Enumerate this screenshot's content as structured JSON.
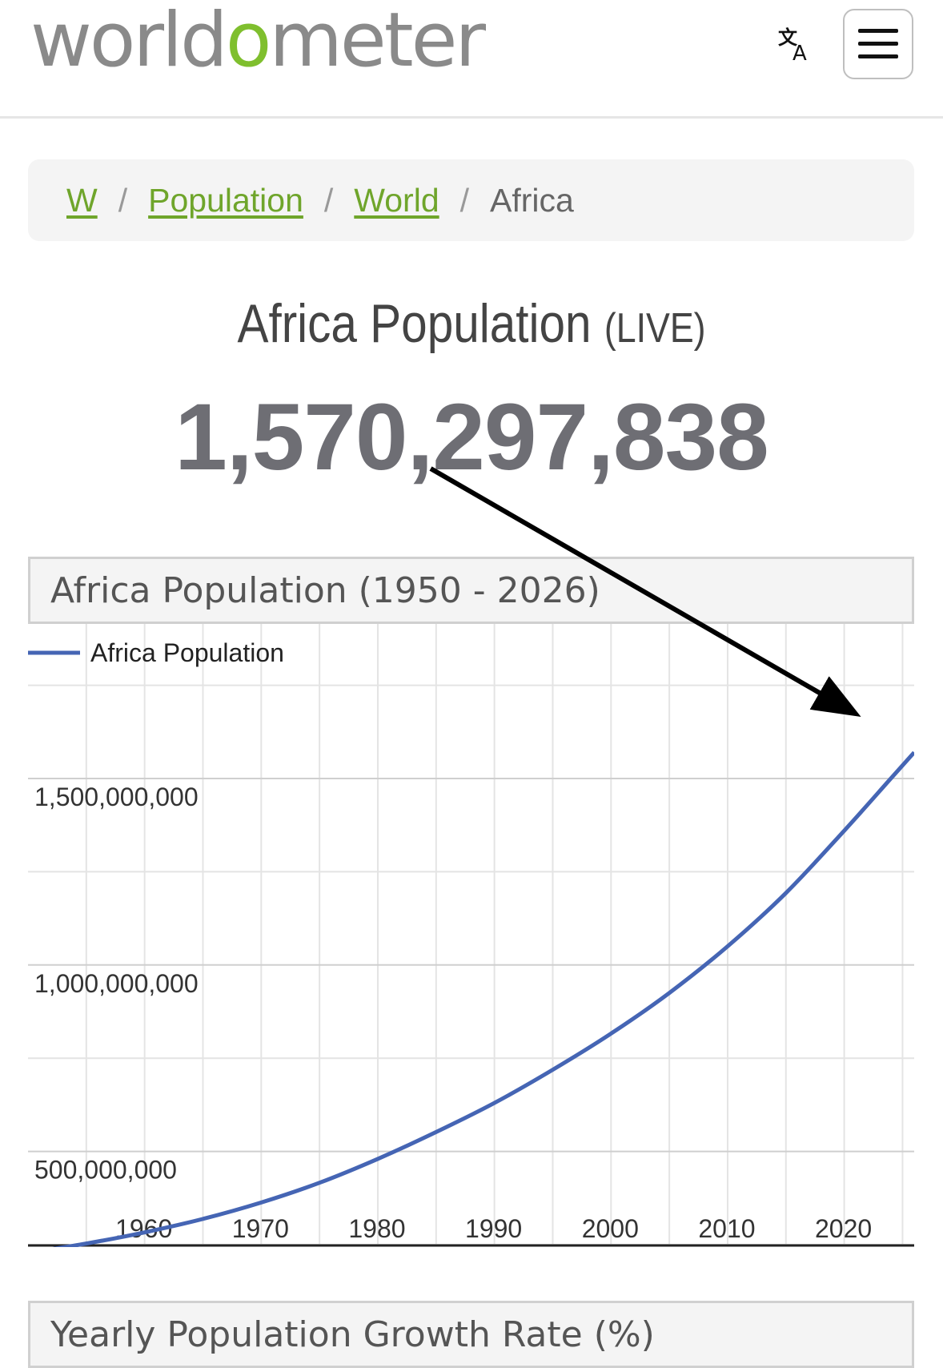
{
  "header": {
    "logo_prefix": "worldo",
    "logo_accent": "o",
    "logo_text": "worldometer",
    "translate_icon": "translate-icon",
    "menu_icon": "hamburger-menu-icon"
  },
  "breadcrumb": {
    "items": [
      {
        "label": "W",
        "link": true
      },
      {
        "label": "Population",
        "link": true
      },
      {
        "label": "World",
        "link": true
      },
      {
        "label": "Africa",
        "link": false
      }
    ],
    "separator": "/"
  },
  "page": {
    "title": "Africa Population",
    "title_suffix": "(LIVE)",
    "live_count": "1,570,297,838"
  },
  "colors": {
    "accent_green": "#7fbf2e",
    "line_blue": "#4565b4",
    "counter_gray": "#6e6e74"
  },
  "chart_section": {
    "header": "Africa Population (1950 - 2026)"
  },
  "chart_data": {
    "type": "line",
    "title": "Africa Population (1950 - 2026)",
    "legend": [
      "Africa Population"
    ],
    "legend_position": "top-left",
    "grid": true,
    "x_ticks": [
      "1960",
      "1970",
      "1980",
      "1990",
      "2000",
      "2010",
      "2020"
    ],
    "y_ticks": [
      "500,000,000",
      "1,000,000,000",
      "1,500,000,000"
    ],
    "xlim": [
      1950,
      2026
    ],
    "ylim": [
      250000000,
      1850000000
    ],
    "series": [
      {
        "name": "Africa Population",
        "x": [
          1950,
          1955,
          1960,
          1965,
          1970,
          1975,
          1980,
          1985,
          1990,
          1995,
          2000,
          2005,
          2010,
          2015,
          2020,
          2024,
          2026
        ],
        "y": [
          228000000,
          253000000,
          283000000,
          319000000,
          363000000,
          416000000,
          480000000,
          552000000,
          630000000,
          719000000,
          816000000,
          925000000,
          1050000000,
          1193000000,
          1360000000,
          1500000000,
          1570000000
        ]
      }
    ]
  },
  "next_section": {
    "header": "Yearly Population Growth Rate (%)"
  }
}
